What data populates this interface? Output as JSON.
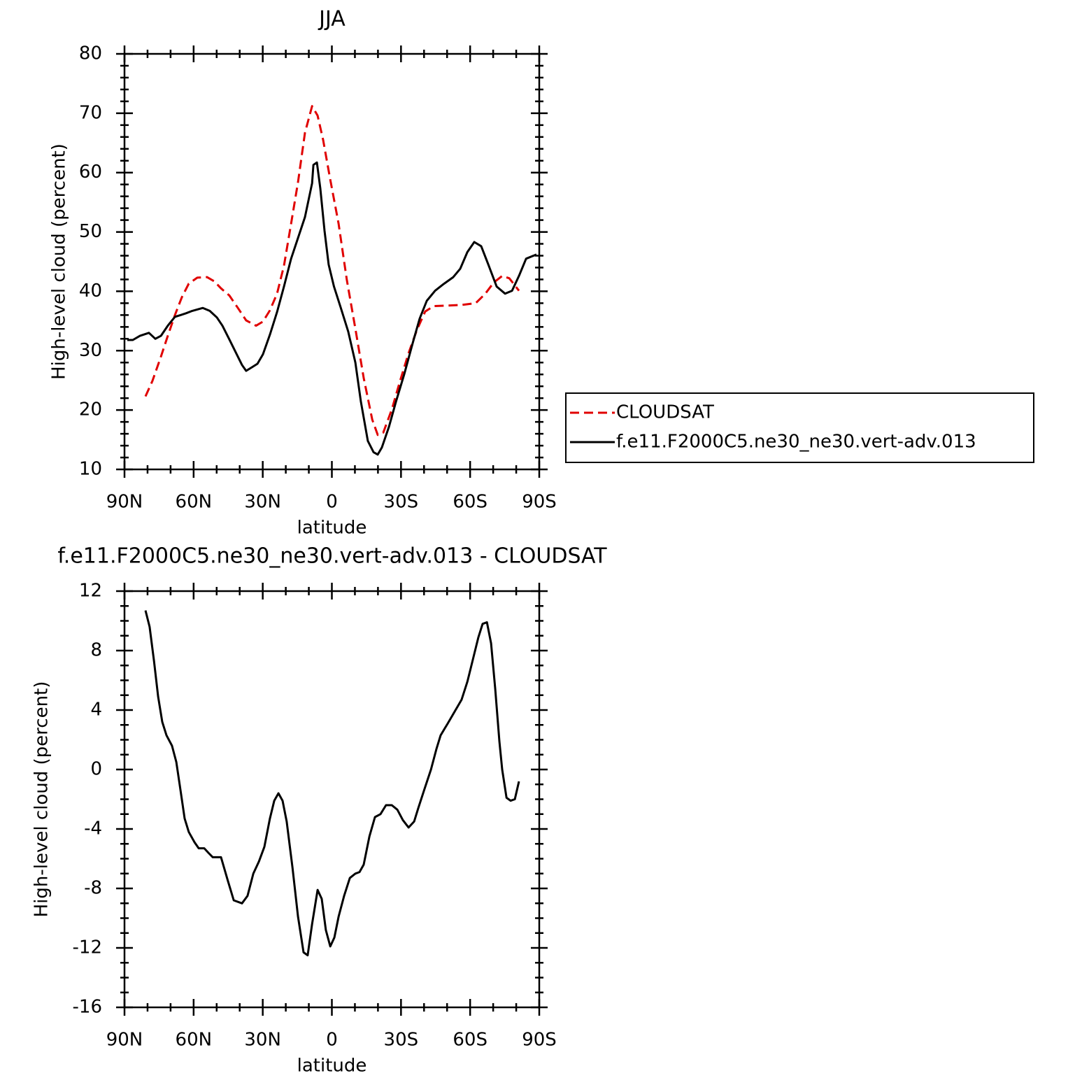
{
  "chart_data": [
    {
      "type": "line",
      "title": "JJA",
      "xlabel": "latitude",
      "ylabel": "High-level cloud (percent)",
      "xlim": [
        90,
        -90
      ],
      "xticks": [
        {
          "value": 90,
          "label": "90N"
        },
        {
          "value": 60,
          "label": "60N"
        },
        {
          "value": 30,
          "label": "30N"
        },
        0,
        {
          "value": -30,
          "label": "30S"
        },
        {
          "value": -60,
          "label": "60S"
        },
        {
          "value": -90,
          "label": "90S"
        }
      ],
      "ylim": [
        10,
        80
      ],
      "yticks": [
        10,
        20,
        30,
        40,
        50,
        60,
        70,
        80
      ],
      "legend": "right",
      "series": [
        {
          "name": "CLOUDSAT",
          "color": "#e00000",
          "linestyle": "dashed",
          "x": [
            80.9,
            77.9,
            74.2,
            71.2,
            68.1,
            65.1,
            62.1,
            58.4,
            54.2,
            51.1,
            48.1,
            44.5,
            40.8,
            37.2,
            32.9,
            29.9,
            26.9,
            23.8,
            20.8,
            17.7,
            14.7,
            11.7,
            8.6,
            6.2,
            3.8,
            0.8,
            -2.9,
            -6.5,
            -10.2,
            -13.8,
            -17.5,
            -19.9,
            -22.3,
            -26.0,
            -29.6,
            -33.3,
            -36.9,
            -40.5,
            -44.2,
            -50.3,
            -56.3,
            -62.4,
            -66.6,
            -70.3,
            -73.9,
            -77.0,
            -81.2
          ],
          "values": [
            22.3,
            24.9,
            29.0,
            32.5,
            36.0,
            39.0,
            41.3,
            42.3,
            42.4,
            41.7,
            40.5,
            39.3,
            37.2,
            35.1,
            34.2,
            34.9,
            36.8,
            39.6,
            44.3,
            51.4,
            58.4,
            66.7,
            71.2,
            69.6,
            65.5,
            59.0,
            51.4,
            41.9,
            33.7,
            25.4,
            18.4,
            15.8,
            16.2,
            20.1,
            24.9,
            29.6,
            33.5,
            36.6,
            37.5,
            37.6,
            37.7,
            38.0,
            39.6,
            41.5,
            42.6,
            42.2,
            40.1
          ]
        },
        {
          "name": "f.e11.F2000C5.ne30_ne30.vert-adv.013",
          "color": "#000000",
          "linestyle": "solid",
          "x": [
            88.8,
            86.4,
            83.3,
            79.4,
            76.6,
            74.2,
            71.2,
            68.1,
            65.7,
            63.3,
            60.6,
            56.0,
            53.0,
            49.9,
            47.5,
            44.5,
            40.8,
            39.0,
            37.2,
            34.7,
            32.3,
            29.9,
            26.9,
            23.8,
            20.8,
            17.7,
            14.7,
            11.7,
            8.6,
            8.0,
            6.5,
            5.0,
            3.2,
            1.4,
            -0.9,
            -3.9,
            -7.1,
            -10.2,
            -12.6,
            -15.6,
            -18.1,
            -19.9,
            -21.7,
            -24.8,
            -27.8,
            -31.4,
            -35.1,
            -38.1,
            -41.2,
            -44.8,
            -48.4,
            -52.7,
            -55.7,
            -58.8,
            -61.8,
            -64.8,
            -67.9,
            -71.5,
            -75.2,
            -78.2,
            -81.2,
            -84.3,
            -88.8
          ],
          "values": [
            31.8,
            31.8,
            32.5,
            33.0,
            32.0,
            32.5,
            34.2,
            35.7,
            36.0,
            36.3,
            36.7,
            37.2,
            36.7,
            35.6,
            34.2,
            31.9,
            29.0,
            27.6,
            26.6,
            27.2,
            27.8,
            29.4,
            32.7,
            36.5,
            40.8,
            45.5,
            49.0,
            52.5,
            58.2,
            61.3,
            61.7,
            57.3,
            50.2,
            44.5,
            40.8,
            37.2,
            33.2,
            28.0,
            21.4,
            14.8,
            12.9,
            12.5,
            13.7,
            17.2,
            21.4,
            26.0,
            31.3,
            35.4,
            38.4,
            40.1,
            41.2,
            42.4,
            43.8,
            46.6,
            48.3,
            47.6,
            44.5,
            40.8,
            39.6,
            40.1,
            42.6,
            45.5,
            46.2
          ]
        }
      ]
    },
    {
      "type": "line",
      "title": "f.e11.F2000C5.ne30_ne30.vert-adv.013 - CLOUDSAT",
      "xlabel": "latitude",
      "ylabel": "High-level cloud (percent)",
      "xlim": [
        90,
        -90
      ],
      "xticks": [
        {
          "value": 90,
          "label": "90N"
        },
        {
          "value": 60,
          "label": "60N"
        },
        {
          "value": 30,
          "label": "30N"
        },
        0,
        {
          "value": -30,
          "label": "30S"
        },
        {
          "value": -60,
          "label": "60S"
        },
        {
          "value": -90,
          "label": "90S"
        }
      ],
      "ylim": [
        -16,
        12
      ],
      "yticks": [
        -16,
        -12,
        -8,
        -4,
        0,
        4,
        8,
        12
      ],
      "color": "#000000",
      "x": [
        80.9,
        79.1,
        77.2,
        75.4,
        73.6,
        71.8,
        69.4,
        67.5,
        65.7,
        63.9,
        62.1,
        59.6,
        57.8,
        55.4,
        53.6,
        51.7,
        48.1,
        45.1,
        42.6,
        39.0,
        36.6,
        34.1,
        31.7,
        29.3,
        26.9,
        25.0,
        23.2,
        21.4,
        19.6,
        17.1,
        14.7,
        12.3,
        10.5,
        8.6,
        6.2,
        4.4,
        2.6,
        0.7,
        -1.1,
        -2.9,
        -5.3,
        -7.8,
        -10.2,
        -12.0,
        -13.8,
        -16.3,
        -18.7,
        -21.1,
        -23.5,
        -26.0,
        -28.4,
        -30.8,
        -33.3,
        -35.7,
        -37.5,
        -40.0,
        -43.0,
        -45.4,
        -47.2,
        -50.3,
        -53.3,
        -56.3,
        -58.8,
        -61.2,
        -63.6,
        -65.4,
        -67.3,
        -69.1,
        -70.9,
        -72.7,
        -73.9,
        -75.8,
        -77.6,
        -79.4,
        -81.2
      ],
      "values": [
        10.7,
        9.6,
        7.3,
        4.9,
        3.2,
        2.3,
        1.6,
        0.5,
        -1.4,
        -3.3,
        -4.2,
        -4.9,
        -5.3,
        -5.3,
        -5.6,
        -5.9,
        -5.9,
        -7.5,
        -8.8,
        -9.0,
        -8.5,
        -7.0,
        -6.2,
        -5.2,
        -3.3,
        -2.1,
        -1.6,
        -2.1,
        -3.5,
        -6.6,
        -9.9,
        -12.3,
        -12.5,
        -10.4,
        -8.1,
        -8.7,
        -10.8,
        -11.9,
        -11.3,
        -9.9,
        -8.5,
        -7.3,
        -7.0,
        -6.9,
        -6.4,
        -4.5,
        -3.2,
        -3.0,
        -2.4,
        -2.4,
        -2.7,
        -3.4,
        -3.9,
        -3.5,
        -2.6,
        -1.4,
        0.0,
        1.4,
        2.3,
        3.1,
        3.9,
        4.7,
        5.9,
        7.4,
        8.9,
        9.8,
        9.9,
        8.5,
        5.4,
        1.9,
        0.0,
        -1.9,
        -2.1,
        -2.0,
        -0.8
      ]
    }
  ]
}
